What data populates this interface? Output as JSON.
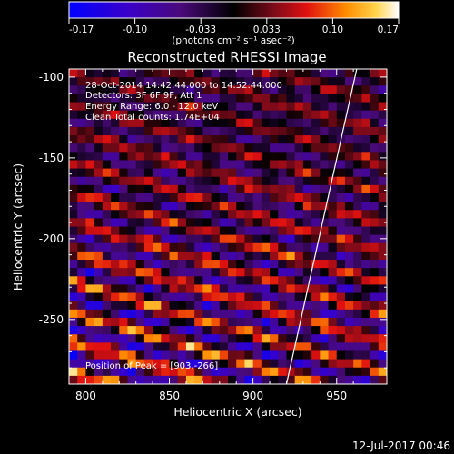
{
  "colorbar": {
    "ticks": [
      "-0.17",
      "-0.10",
      "-0.033",
      "0.033",
      "0.10",
      "0.17"
    ],
    "units": "(photons cm⁻² s⁻¹ asec⁻²)",
    "range": [
      -0.17,
      0.17
    ]
  },
  "chart_data": {
    "type": "heatmap",
    "title": "Reconstructed RHESSI Image",
    "xlabel": "Heliocentric X (arcsec)",
    "ylabel": "Heliocentric Y (arcsec)",
    "xlim": [
      790,
      980
    ],
    "ylim": [
      -290,
      -95
    ],
    "x_ticks": [
      800,
      850,
      900,
      950
    ],
    "y_ticks": [
      -100,
      -150,
      -200,
      -250
    ],
    "info_lines": [
      "28-Oct-2014 14:42:44.000 to 14:52:44.000",
      "Detectors: 3F 6F 9F, Att 1",
      "Energy Range: 6.0 - 12.0 keV",
      "Clean     Total counts: 1.74E+04"
    ],
    "peak_label": "Position of Peak = [903,-266]",
    "peak_position": [
      903,
      -266
    ],
    "limb_line": [
      [
        920,
        -290
      ],
      [
        962,
        -95
      ]
    ],
    "grid": false
  },
  "footer": {
    "timestamp": "12-Jul-2017 00:46"
  }
}
